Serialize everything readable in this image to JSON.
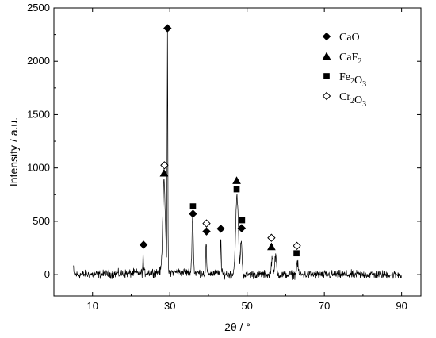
{
  "chart_data": {
    "type": "line",
    "xlabel": "2θ / °",
    "ylabel": "Intensity / a.u.",
    "xlim": [
      0,
      95
    ],
    "ylim": [
      -200,
      2500
    ],
    "xticks": [
      10,
      30,
      50,
      70,
      90
    ],
    "yticks": [
      0,
      500,
      1000,
      1500,
      2000,
      2500
    ],
    "grid": false,
    "legend_position": "top-right",
    "legend": [
      {
        "label": "CaO",
        "base": "CaO",
        "subs": [],
        "marker": "diamond-filled"
      },
      {
        "label": "CaF2",
        "base": "CaF",
        "subs": [
          "2"
        ],
        "marker": "triangle-filled"
      },
      {
        "label": "Fe2O3",
        "base": "Fe",
        "subs": [
          "2",
          "O",
          "3"
        ],
        "marker": "square-filled"
      },
      {
        "label": "Cr2O3",
        "base": "Cr",
        "subs": [
          "2",
          "O",
          "3"
        ],
        "marker": "diamond-open"
      }
    ],
    "pattern": {
      "x_range": [
        5,
        90
      ],
      "baseline": 0,
      "noise_amplitude": 45,
      "peaks": [
        {
          "x": 23.1,
          "y": 180,
          "w": 0.12
        },
        {
          "x": 28.5,
          "y": 880,
          "w": 0.45
        },
        {
          "x": 29.4,
          "y": 2250,
          "w": 0.12
        },
        {
          "x": 35.9,
          "y": 520,
          "w": 0.25
        },
        {
          "x": 39.4,
          "y": 300,
          "w": 0.15
        },
        {
          "x": 43.2,
          "y": 330,
          "w": 0.15
        },
        {
          "x": 47.4,
          "y": 720,
          "w": 0.5
        },
        {
          "x": 48.5,
          "y": 330,
          "w": 0.25
        },
        {
          "x": 56.5,
          "y": 160,
          "w": 0.3
        },
        {
          "x": 57.4,
          "y": 170,
          "w": 0.3
        },
        {
          "x": 63.0,
          "y": 110,
          "w": 0.3
        }
      ]
    },
    "markers": [
      {
        "x": 23.2,
        "y": 280,
        "phase": "CaO"
      },
      {
        "x": 29.4,
        "y": 2310,
        "phase": "CaO"
      },
      {
        "x": 28.5,
        "y": 950,
        "phase": "CaF2"
      },
      {
        "x": 28.6,
        "y": 1025,
        "phase": "Cr2O3"
      },
      {
        "x": 36.0,
        "y": 640,
        "phase": "Fe2O3"
      },
      {
        "x": 36.0,
        "y": 570,
        "phase": "CaO"
      },
      {
        "x": 39.5,
        "y": 405,
        "phase": "CaO"
      },
      {
        "x": 39.5,
        "y": 480,
        "phase": "Cr2O3"
      },
      {
        "x": 43.2,
        "y": 430,
        "phase": "CaO"
      },
      {
        "x": 47.3,
        "y": 880,
        "phase": "CaF2"
      },
      {
        "x": 47.3,
        "y": 800,
        "phase": "Fe2O3"
      },
      {
        "x": 48.7,
        "y": 510,
        "phase": "Fe2O3"
      },
      {
        "x": 48.6,
        "y": 435,
        "phase": "CaO"
      },
      {
        "x": 56.3,
        "y": 260,
        "phase": "CaF2"
      },
      {
        "x": 56.3,
        "y": 345,
        "phase": "Cr2O3"
      },
      {
        "x": 62.8,
        "y": 200,
        "phase": "Fe2O3"
      },
      {
        "x": 62.9,
        "y": 270,
        "phase": "Cr2O3"
      }
    ]
  }
}
